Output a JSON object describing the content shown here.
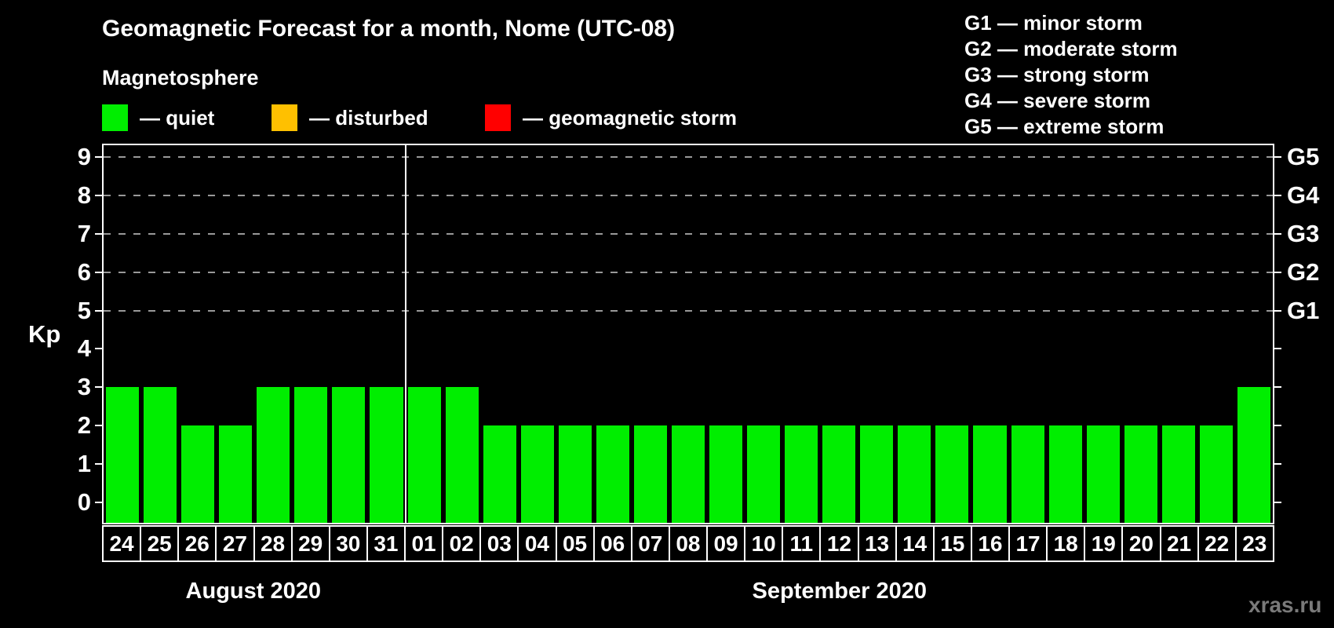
{
  "header": {
    "title": "Geomagnetic Forecast for a month, Nome (UTC-08)",
    "subtitle": "Magnetosphere"
  },
  "status_legend": {
    "items": [
      {
        "name": "quiet",
        "label": "— quiet",
        "color": "#00ee00"
      },
      {
        "name": "disturbed",
        "label": "— disturbed",
        "color": "#ffc000"
      },
      {
        "name": "storm",
        "label": "— geomagnetic storm",
        "color": "#ff0000"
      }
    ]
  },
  "g_legend": {
    "items": [
      {
        "label": "G1 — minor storm"
      },
      {
        "label": "G2 — moderate storm"
      },
      {
        "label": "G3 — strong storm"
      },
      {
        "label": "G4 — severe storm"
      },
      {
        "label": "G5 — extreme storm"
      }
    ]
  },
  "chart_data": {
    "type": "bar",
    "title": "Geomagnetic Forecast for a month, Nome (UTC-08)",
    "ylabel": "Kp",
    "ylim": [
      0,
      9
    ],
    "yticks": [
      0,
      1,
      2,
      3,
      4,
      5,
      6,
      7,
      8,
      9
    ],
    "gridlines_at": [
      5,
      6,
      7,
      8,
      9
    ],
    "grid_style": "dashed",
    "right_axis": [
      {
        "label": "G1",
        "kp": 5
      },
      {
        "label": "G2",
        "kp": 6
      },
      {
        "label": "G3",
        "kp": 7
      },
      {
        "label": "G4",
        "kp": 8
      },
      {
        "label": "G5",
        "kp": 9
      }
    ],
    "categories": [
      "24",
      "25",
      "26",
      "27",
      "28",
      "29",
      "30",
      "31",
      "01",
      "02",
      "03",
      "04",
      "05",
      "06",
      "07",
      "08",
      "09",
      "10",
      "11",
      "12",
      "13",
      "14",
      "15",
      "16",
      "17",
      "18",
      "19",
      "20",
      "21",
      "22",
      "23"
    ],
    "values": [
      3,
      3,
      2,
      2,
      3,
      3,
      3,
      3,
      3,
      3,
      2,
      2,
      2,
      2,
      2,
      2,
      2,
      2,
      2,
      2,
      2,
      2,
      2,
      2,
      2,
      2,
      2,
      2,
      2,
      2,
      3
    ],
    "bar_color": "#00ee00",
    "months": [
      {
        "label": "August 2020",
        "start_index": 0,
        "days": 8
      },
      {
        "label": "September 2020",
        "start_index": 8,
        "days": 23
      }
    ],
    "legend_position": "top-left"
  },
  "watermark": "xras.ru",
  "colors": {
    "quiet": "#00ee00",
    "disturbed": "#ffc000",
    "storm": "#ff0000",
    "grid": "#999999",
    "axis": "#ffffff",
    "watermark": "#7a7a7a"
  }
}
